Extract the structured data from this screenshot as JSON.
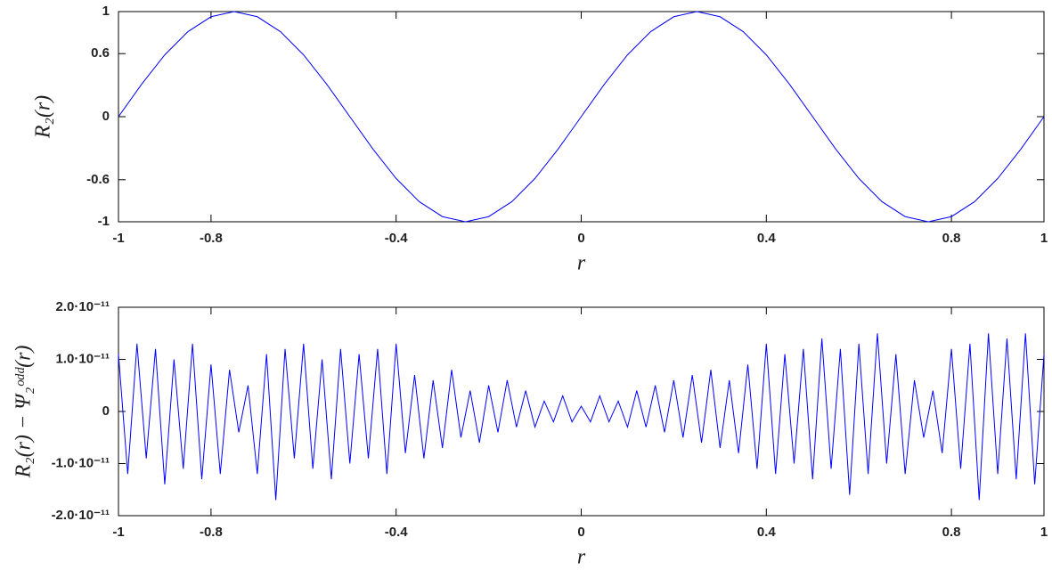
{
  "chart_data": [
    {
      "type": "line",
      "ylabel": "R₂(r)",
      "xlabel": "r",
      "xlim": [
        -1,
        1
      ],
      "xticks": [
        -1,
        -0.8,
        -0.4,
        0,
        0.4,
        0.8,
        1
      ],
      "ylim": [
        -1,
        1
      ],
      "yticks": [
        1,
        0.6,
        0,
        -0.6,
        -1
      ],
      "x": [
        -1,
        -0.95,
        -0.9,
        -0.85,
        -0.8,
        -0.75,
        -0.7,
        -0.65,
        -0.6,
        -0.55,
        -0.5,
        -0.45,
        -0.4,
        -0.35,
        -0.3,
        -0.25,
        -0.2,
        -0.15,
        -0.1,
        -0.05,
        0,
        0.05,
        0.1,
        0.15,
        0.2,
        0.25,
        0.3,
        0.35,
        0.4,
        0.45,
        0.5,
        0.55,
        0.6,
        0.65,
        0.7,
        0.75,
        0.8,
        0.85,
        0.9,
        0.95,
        1
      ],
      "series": [
        {
          "color": "#0000ff",
          "values": [
            0,
            0.309,
            0.588,
            0.809,
            0.951,
            1,
            0.951,
            0.809,
            0.588,
            0.309,
            0,
            -0.309,
            -0.588,
            -0.809,
            -0.951,
            -1,
            -0.951,
            -0.809,
            -0.588,
            -0.309,
            0,
            0.309,
            0.588,
            0.809,
            0.951,
            1,
            0.951,
            0.809,
            0.588,
            0.309,
            0,
            -0.309,
            -0.588,
            -0.809,
            -0.951,
            -1,
            -0.951,
            -0.809,
            -0.588,
            -0.309,
            0
          ]
        }
      ]
    },
    {
      "type": "line",
      "ylabel": "R₂(r) − Ψ₂ᵒᵈᵈ(r)",
      "xlabel": "r",
      "xlim": [
        -1,
        1
      ],
      "xticks": [
        -1,
        -0.8,
        -0.4,
        0,
        0.4,
        0.8,
        1
      ],
      "ylim": [
        -2e-11,
        2e-11
      ],
      "yticks": [
        {
          "value": 2e-11,
          "label": "2.0·10⁻¹¹"
        },
        {
          "value": 1e-11,
          "label": "1.0·10⁻¹¹"
        },
        0,
        {
          "value": -1e-11,
          "label": "-1.0·10⁻¹¹"
        },
        {
          "value": -2e-11,
          "label": "-2.0·10⁻¹¹"
        }
      ],
      "x": [
        -1,
        -0.98,
        -0.96,
        -0.94,
        -0.92,
        -0.9,
        -0.88,
        -0.86,
        -0.84,
        -0.82,
        -0.8,
        -0.78,
        -0.76,
        -0.74,
        -0.72,
        -0.7,
        -0.68,
        -0.66,
        -0.64,
        -0.62,
        -0.6,
        -0.58,
        -0.56,
        -0.54,
        -0.52,
        -0.5,
        -0.48,
        -0.46,
        -0.44,
        -0.42,
        -0.4,
        -0.38,
        -0.36,
        -0.34,
        -0.32,
        -0.3,
        -0.28,
        -0.26,
        -0.24,
        -0.22,
        -0.2,
        -0.18,
        -0.16,
        -0.14,
        -0.12,
        -0.1,
        -0.08,
        -0.06,
        -0.04,
        -0.02,
        0,
        0.02,
        0.04,
        0.06,
        0.08,
        0.1,
        0.12,
        0.14,
        0.16,
        0.18,
        0.2,
        0.22,
        0.24,
        0.26,
        0.28,
        0.3,
        0.32,
        0.34,
        0.36,
        0.38,
        0.4,
        0.42,
        0.44,
        0.46,
        0.48,
        0.5,
        0.52,
        0.54,
        0.56,
        0.58,
        0.6,
        0.62,
        0.64,
        0.66,
        0.68,
        0.7,
        0.72,
        0.74,
        0.76,
        0.78,
        0.8,
        0.82,
        0.84,
        0.86,
        0.88,
        0.9,
        0.92,
        0.94,
        0.96,
        0.98,
        1
      ],
      "series": [
        {
          "color": "#0000ff",
          "values": [
            1.1e-11,
            -1.2e-11,
            1.3e-11,
            -9e-12,
            1.2e-11,
            -1.4e-11,
            1e-11,
            -1.1e-11,
            1.3e-11,
            -1.3e-11,
            9e-12,
            -1.2e-11,
            8e-12,
            -4e-12,
            5e-12,
            -1.2e-11,
            1.1e-11,
            -1.7e-11,
            1.2e-11,
            -9e-12,
            1.3e-11,
            -1.1e-11,
            1e-11,
            -1.3e-11,
            1.2e-11,
            -1e-11,
            1.1e-11,
            -9e-12,
            1.2e-11,
            -1.2e-11,
            1.3e-11,
            -8e-12,
            7e-12,
            -9e-12,
            6e-12,
            -7e-12,
            8e-12,
            -5e-12,
            4e-12,
            -6e-12,
            5e-12,
            -4e-12,
            6e-12,
            -3e-12,
            4e-12,
            -3e-12,
            2e-12,
            -2e-12,
            3e-12,
            -2e-12,
            1e-12,
            -2e-12,
            3e-12,
            -2e-12,
            2e-12,
            -3e-12,
            4e-12,
            -3e-12,
            5e-12,
            -4e-12,
            6e-12,
            -5e-12,
            7e-12,
            -6e-12,
            8e-12,
            -7e-12,
            6e-12,
            -8e-12,
            9e-12,
            -1.1e-11,
            1.3e-11,
            -1.2e-11,
            1.1e-11,
            -1e-11,
            1.2e-11,
            -1.3e-11,
            1.4e-11,
            -1.1e-11,
            1.2e-11,
            -1.6e-11,
            1.3e-11,
            -1.2e-11,
            1.5e-11,
            -1e-11,
            1.1e-11,
            -1.2e-11,
            6e-12,
            -5e-12,
            4e-12,
            -8e-12,
            1.2e-11,
            -1.1e-11,
            1.3e-11,
            -1.7e-11,
            1.5e-11,
            -1.2e-11,
            1.4e-11,
            -1.3e-11,
            1.5e-11,
            -1.4e-11,
            1.1e-11
          ]
        }
      ]
    }
  ]
}
